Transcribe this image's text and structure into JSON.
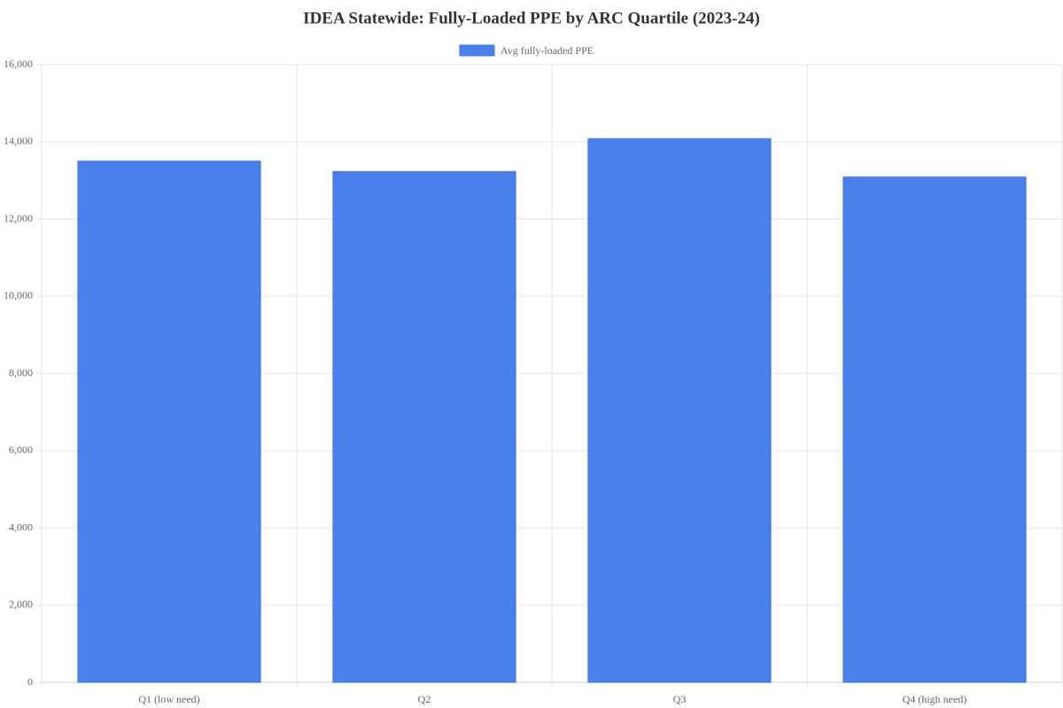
{
  "chart_data": {
    "type": "bar",
    "title": "IDEA Statewide: Fully-Loaded PPE by ARC Quartile (2023-24)",
    "categories": [
      "Q1 (low need)",
      "Q2",
      "Q3",
      "Q4 (high need)"
    ],
    "series": [
      {
        "name": "Avg fully-loaded PPE",
        "color": "#3b73e8",
        "values": [
          13500,
          13230,
          14080,
          13090
        ]
      }
    ],
    "ylim": [
      0,
      16000
    ],
    "yticks": [
      0,
      {
        "value": 2000,
        "label": "2,000"
      },
      {
        "value": 4000,
        "label": "4,000"
      },
      {
        "value": 6000,
        "label": "6,000"
      },
      {
        "value": 8000,
        "label": "8,000"
      },
      {
        "value": 10000,
        "label": "10,000"
      },
      {
        "value": 12000,
        "label": "12,000"
      },
      {
        "value": 14000,
        "label": "14,000"
      },
      {
        "value": 16000,
        "label": "16,000"
      }
    ],
    "grid": true,
    "legend": "top"
  }
}
